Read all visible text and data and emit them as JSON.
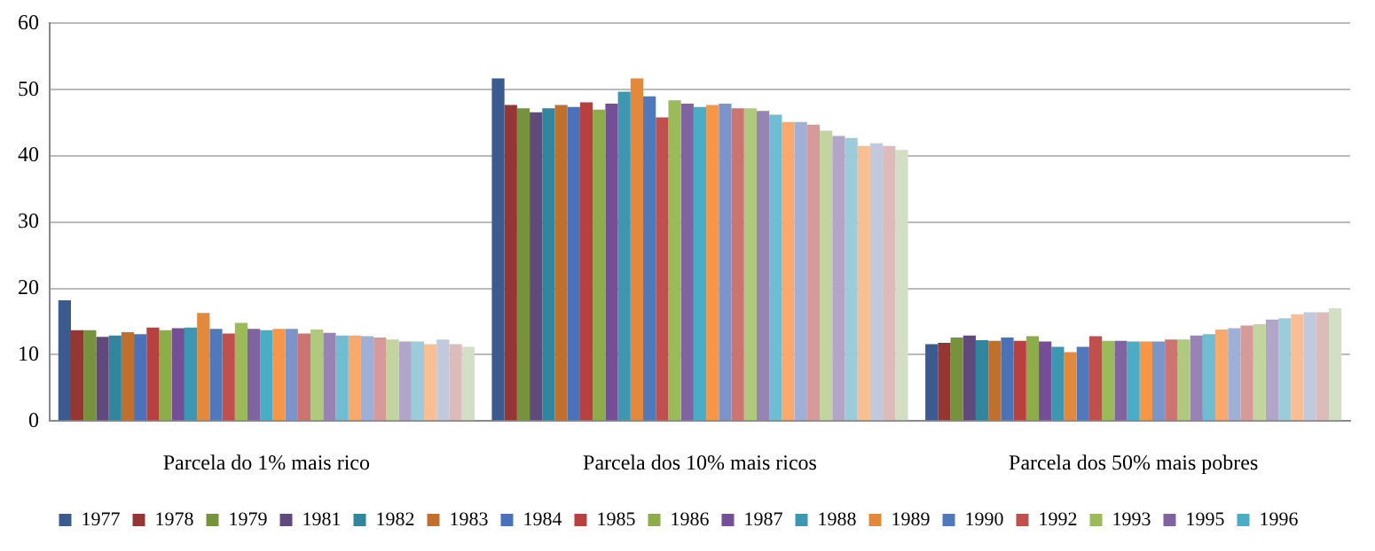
{
  "chart_data": {
    "type": "bar",
    "categories": [
      "Parcela do 1% mais rico",
      "Parcela dos 10% mais ricos",
      "Parcela dos 50% mais pobres"
    ],
    "ylim": [
      0,
      60
    ],
    "yticks": [
      0,
      10,
      20,
      30,
      40,
      50,
      60
    ],
    "grid": "y",
    "legend": "bottom",
    "series": [
      {
        "name": "1977",
        "color": "#3b5a8f",
        "values": [
          18.2,
          51.7,
          11.6
        ]
      },
      {
        "name": "1978",
        "color": "#943634",
        "values": [
          13.7,
          47.7,
          11.8
        ]
      },
      {
        "name": "1979",
        "color": "#76923c",
        "values": [
          13.7,
          47.2,
          12.6
        ]
      },
      {
        "name": "1981",
        "color": "#5f4a7b",
        "values": [
          12.7,
          46.6,
          12.9
        ]
      },
      {
        "name": "1982",
        "color": "#31859c",
        "values": [
          12.9,
          47.2,
          12.2
        ]
      },
      {
        "name": "1983",
        "color": "#c0702c",
        "values": [
          13.4,
          47.7,
          12.1
        ]
      },
      {
        "name": "1984",
        "color": "#4a72b8",
        "values": [
          13.1,
          47.4,
          12.6
        ]
      },
      {
        "name": "1985",
        "color": "#b8413f",
        "values": [
          14.1,
          48.1,
          12.1
        ]
      },
      {
        "name": "1986",
        "color": "#8dac4a",
        "values": [
          13.7,
          47.0,
          12.8
        ]
      },
      {
        "name": "1987",
        "color": "#744f97",
        "values": [
          14.0,
          47.9,
          12.0
        ]
      },
      {
        "name": "1988",
        "color": "#3c97b3",
        "values": [
          14.1,
          49.7,
          11.2
        ]
      },
      {
        "name": "1989",
        "color": "#e3893c",
        "values": [
          16.3,
          51.7,
          10.4
        ]
      },
      {
        "name": "1990",
        "color": "#4f78bd",
        "values": [
          13.9,
          49.0,
          11.2
        ]
      },
      {
        "name": "1992",
        "color": "#c0504d",
        "values": [
          13.2,
          45.8,
          12.8
        ]
      },
      {
        "name": "1993",
        "color": "#9bbb59",
        "values": [
          14.8,
          48.4,
          12.1
        ]
      },
      {
        "name": "1995",
        "color": "#8064a2",
        "values": [
          13.9,
          47.9,
          12.1
        ]
      },
      {
        "name": "1996",
        "color": "#4bacc6",
        "values": [
          13.7,
          47.4,
          12.0
        ]
      },
      {
        "color": "#f79646",
        "values": [
          13.9,
          47.7,
          12.0
        ]
      },
      {
        "color": "#7b94c9",
        "values": [
          13.9,
          47.9,
          12.0
        ]
      },
      {
        "color": "#cd7371",
        "values": [
          13.2,
          47.2,
          12.3
        ]
      },
      {
        "color": "#afc97f",
        "values": [
          13.8,
          47.2,
          12.3
        ]
      },
      {
        "color": "#9883b5",
        "values": [
          13.3,
          46.8,
          12.9
        ]
      },
      {
        "color": "#70bcd2",
        "values": [
          12.9,
          46.2,
          13.1
        ]
      },
      {
        "color": "#f8a96b",
        "values": [
          12.9,
          45.1,
          13.8
        ]
      },
      {
        "color": "#9fafd5",
        "values": [
          12.8,
          45.1,
          14.0
        ]
      },
      {
        "color": "#d69a99",
        "values": [
          12.6,
          44.7,
          14.4
        ]
      },
      {
        "color": "#c2d5a1",
        "values": [
          12.3,
          43.8,
          14.6
        ]
      },
      {
        "color": "#b2a6c8",
        "values": [
          12.0,
          43.0,
          15.3
        ]
      },
      {
        "color": "#9ccbda",
        "values": [
          12.0,
          42.7,
          15.5
        ]
      },
      {
        "color": "#f9bf94",
        "values": [
          11.6,
          41.5,
          16.1
        ]
      },
      {
        "color": "#c1c9dd",
        "values": [
          12.3,
          41.9,
          16.4
        ]
      },
      {
        "color": "#dcbcbb",
        "values": [
          11.6,
          41.5,
          16.4
        ]
      },
      {
        "color": "#d3dec4",
        "values": [
          11.2,
          40.9,
          17.0
        ]
      }
    ]
  }
}
